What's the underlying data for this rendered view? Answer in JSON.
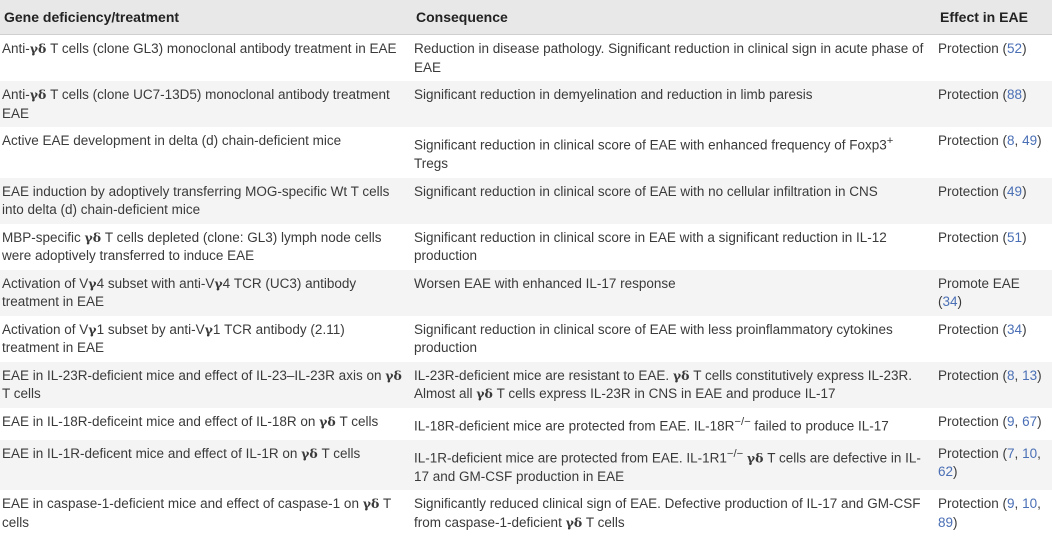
{
  "headers": [
    "Gene deficiency/treatment",
    "Consequence",
    "Effect in EAE"
  ],
  "rows": [
    {
      "treatment": [
        {
          "t": "Anti-"
        },
        {
          "g": "γδ"
        },
        {
          "t": " T cells (clone GL3) monoclonal antibody treatment in EAE"
        }
      ],
      "consequence": [
        {
          "t": "Reduction in disease pathology. Significant reduction in clinical sign in acute phase of EAE"
        }
      ],
      "effect": [
        {
          "t": "Protection ("
        },
        {
          "r": "52"
        },
        {
          "t": ")"
        }
      ]
    },
    {
      "treatment": [
        {
          "t": "Anti-"
        },
        {
          "g": "γδ"
        },
        {
          "t": " T cells (clone UC7-13D5) monoclonal antibody treatment EAE"
        }
      ],
      "consequence": [
        {
          "t": "Significant reduction in demyelination and reduction in limb paresis"
        }
      ],
      "effect": [
        {
          "t": "Protection ("
        },
        {
          "r": "88"
        },
        {
          "t": ")"
        }
      ]
    },
    {
      "treatment": [
        {
          "t": "Active EAE development in delta (d) chain-deficient mice"
        }
      ],
      "consequence": [
        {
          "t": "Significant reduction in clinical score of EAE with enhanced frequency of Foxp3"
        },
        {
          "sup": "+"
        },
        {
          "t": " Tregs"
        }
      ],
      "effect": [
        {
          "t": "Protection ("
        },
        {
          "r": "8"
        },
        {
          "t": ", "
        },
        {
          "r": "49"
        },
        {
          "t": ")"
        }
      ]
    },
    {
      "treatment": [
        {
          "t": "EAE induction by adoptively transferring MOG-specific Wt T cells into delta (d) chain-deficient mice"
        }
      ],
      "consequence": [
        {
          "t": "Significant reduction in clinical score of EAE with no cellular infiltration in CNS"
        }
      ],
      "effect": [
        {
          "t": "Protection ("
        },
        {
          "r": "49"
        },
        {
          "t": ")"
        }
      ]
    },
    {
      "treatment": [
        {
          "t": "MBP-specific "
        },
        {
          "g": "γδ"
        },
        {
          "t": " T cells depleted (clone: GL3) lymph node cells were adoptively transferred to induce EAE"
        }
      ],
      "consequence": [
        {
          "t": "Significant reduction in clinical score in EAE with a significant reduction in IL-12 production"
        }
      ],
      "effect": [
        {
          "t": "Protection ("
        },
        {
          "r": "51"
        },
        {
          "t": ")"
        }
      ]
    },
    {
      "treatment": [
        {
          "t": "Activation of V"
        },
        {
          "g": "γ"
        },
        {
          "t": "4 subset with anti-V"
        },
        {
          "g": "γ"
        },
        {
          "t": "4 TCR (UC3) antibody treatment in EAE"
        }
      ],
      "consequence": [
        {
          "t": "Worsen EAE with enhanced IL-17 response"
        }
      ],
      "effect": [
        {
          "t": "Promote EAE ("
        },
        {
          "r": "34"
        },
        {
          "t": ")"
        }
      ]
    },
    {
      "treatment": [
        {
          "t": "Activation of V"
        },
        {
          "g": "γ"
        },
        {
          "t": "1 subset by anti-V"
        },
        {
          "g": "γ"
        },
        {
          "t": "1 TCR antibody (2.11) treatment in EAE"
        }
      ],
      "consequence": [
        {
          "t": "Significant reduction in clinical score of EAE with less proinflammatory cytokines production"
        }
      ],
      "effect": [
        {
          "t": "Protection ("
        },
        {
          "r": "34"
        },
        {
          "t": ")"
        }
      ]
    },
    {
      "treatment": [
        {
          "t": "EAE in IL-23R-deficient mice and effect of IL-23–IL-23R axis on "
        },
        {
          "g": "γδ"
        },
        {
          "t": " T cells"
        }
      ],
      "consequence": [
        {
          "t": "IL-23R-deficient mice are resistant to EAE. "
        },
        {
          "g": "γδ"
        },
        {
          "t": " T cells constitutively express IL-23R. Almost all "
        },
        {
          "g": "γδ"
        },
        {
          "t": " T cells express IL-23R in CNS in EAE and produce IL-17"
        }
      ],
      "effect": [
        {
          "t": "Protection ("
        },
        {
          "r": "8"
        },
        {
          "t": ", "
        },
        {
          "r": "13"
        },
        {
          "t": ")"
        }
      ]
    },
    {
      "treatment": [
        {
          "t": "EAE in IL-18R-deficeint mice and effect of IL-18R on "
        },
        {
          "g": "γδ"
        },
        {
          "t": " T cells"
        }
      ],
      "consequence": [
        {
          "t": "IL-18R-deficient mice are protected from EAE. IL-18R"
        },
        {
          "sup": "−/−"
        },
        {
          "t": " failed to produce IL-17"
        }
      ],
      "effect": [
        {
          "t": "Protection ("
        },
        {
          "r": "9"
        },
        {
          "t": ", "
        },
        {
          "r": "67"
        },
        {
          "t": ")"
        }
      ]
    },
    {
      "treatment": [
        {
          "t": "EAE in IL-1R-deficent mice and effect of IL-1R on "
        },
        {
          "g": "γδ"
        },
        {
          "t": " T cells"
        }
      ],
      "consequence": [
        {
          "t": "IL-1R-deficient mice are protected from EAE. IL-1R1"
        },
        {
          "sup": "−/−"
        },
        {
          "t": " "
        },
        {
          "g": "γδ"
        },
        {
          "t": " T cells are defective in IL-17 and GM-CSF production in EAE"
        }
      ],
      "effect": [
        {
          "t": "Protection ("
        },
        {
          "r": "7"
        },
        {
          "t": ", "
        },
        {
          "r": "10"
        },
        {
          "t": ", "
        },
        {
          "r": "62"
        },
        {
          "t": ")"
        }
      ]
    },
    {
      "treatment": [
        {
          "t": "EAE in caspase-1-deficient mice and effect of caspase-1 on "
        },
        {
          "g": "γδ"
        },
        {
          "t": " T cells"
        }
      ],
      "consequence": [
        {
          "t": "Significantly reduced clinical sign of EAE. Defective production of IL-17 and GM-CSF from caspase-1-deficient "
        },
        {
          "g": "γδ"
        },
        {
          "t": " T cells"
        }
      ],
      "effect": [
        {
          "t": "Protection ("
        },
        {
          "r": "9"
        },
        {
          "t": ", "
        },
        {
          "r": "10"
        },
        {
          "t": ", "
        },
        {
          "r": "89"
        },
        {
          "t": ")"
        }
      ]
    }
  ]
}
